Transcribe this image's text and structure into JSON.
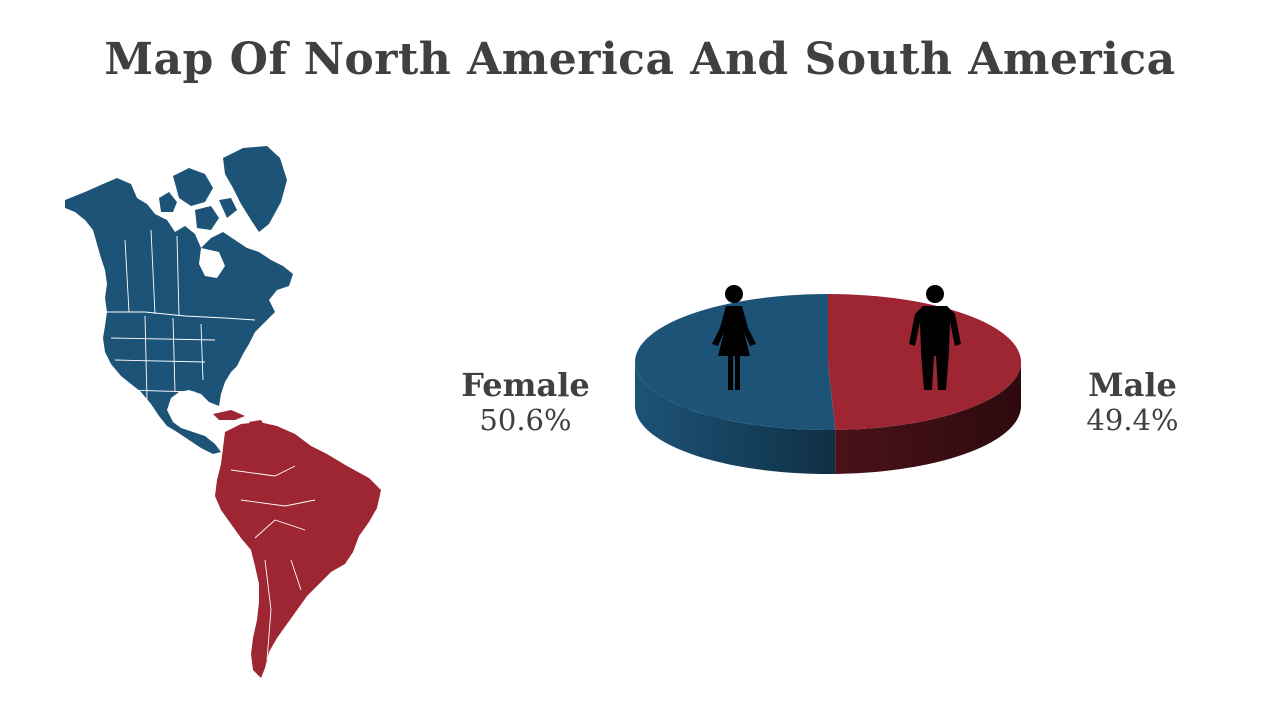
{
  "title": "Map Of North America And South America",
  "colors": {
    "north_america": "#1d5377",
    "south_america": "#9e2633",
    "female": "#1d5377",
    "male": "#9e2633",
    "text": "#404040"
  },
  "icons": {
    "female": "female-person-icon",
    "male": "male-person-icon",
    "map": "americas-map-icon"
  },
  "chart_data": {
    "type": "pie",
    "style": "3d",
    "categories": [
      "Female",
      "Male"
    ],
    "values": [
      50.6,
      49.4
    ],
    "value_labels": [
      "50.6%",
      "49.4%"
    ],
    "colors": [
      "#1d5377",
      "#9e2633"
    ]
  }
}
